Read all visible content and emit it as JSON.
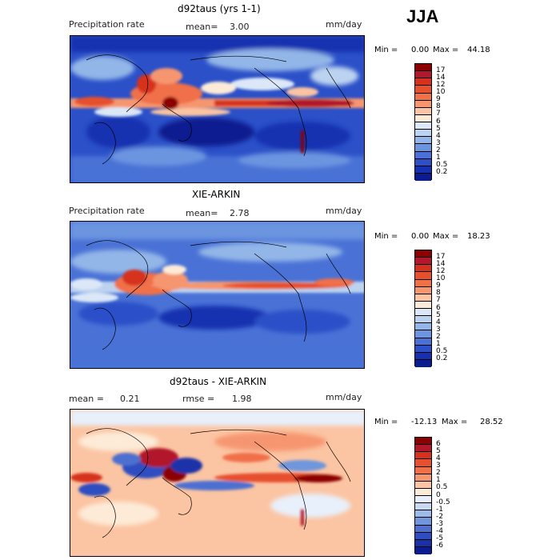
{
  "season": "JJA",
  "panels": [
    {
      "title": "d92taus (yrs 1-1)",
      "left_label": "Precipitation rate",
      "mid_label": "mean=",
      "mid_value": "3.00",
      "units": "mm/day",
      "min_label": "Min =",
      "min_value": "0.00",
      "max_label": "Max =",
      "max_value": "44.18"
    },
    {
      "title": "XIE-ARKIN",
      "left_label": "Precipitation rate",
      "mid_label": "mean=",
      "mid_value": "2.78",
      "units": "mm/day",
      "min_label": "Min =",
      "min_value": "0.00",
      "max_label": "Max =",
      "max_value": "18.23"
    },
    {
      "title": "d92taus - XIE-ARKIN",
      "left_label": "mean =",
      "left_value": "0.21",
      "mid_label": "rmse =",
      "mid_value": "1.98",
      "units": "mm/day",
      "min_label": "Min =",
      "min_value": "-12.13",
      "max_label": "Max =",
      "max_value": "28.52"
    }
  ],
  "colorbar_precip": {
    "labels": [
      "17",
      "14",
      "12",
      "10",
      "9",
      "8",
      "7",
      "6",
      "5",
      "4",
      "3",
      "2",
      "1",
      "0.5",
      "0.2"
    ],
    "colors": [
      "#8b0000",
      "#b2182b",
      "#d6301f",
      "#e6502d",
      "#f07048",
      "#f6966f",
      "#fbc4a2",
      "#fdebd8",
      "#dce8f7",
      "#bcd3f0",
      "#93b6e8",
      "#6c95e0",
      "#4a72d6",
      "#2b50c8",
      "#1530b0",
      "#0a1c90"
    ]
  },
  "colorbar_diff": {
    "labels": [
      "6",
      "5",
      "4",
      "3",
      "2",
      "1",
      "0.5",
      "0",
      "-0.5",
      "-1",
      "-2",
      "-3",
      "-4",
      "-5",
      "-6"
    ],
    "colors": [
      "#8b0000",
      "#b2182b",
      "#d6301f",
      "#e6502d",
      "#f07048",
      "#f6966f",
      "#fbc4a2",
      "#fdebd8",
      "#e8f0fb",
      "#c8d9f2",
      "#9dbbe8",
      "#7096dc",
      "#4d70d0",
      "#2e4ec0",
      "#1a30a8",
      "#0a1c90"
    ]
  }
}
